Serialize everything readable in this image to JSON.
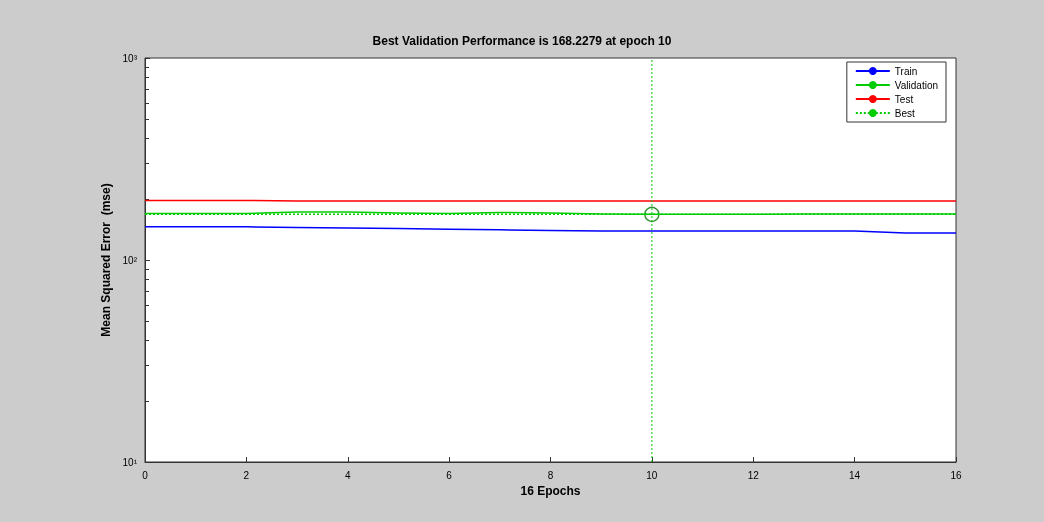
{
  "chart_data": {
    "type": "line",
    "title": "Best Validation Performance is 168.2279 at epoch 10",
    "xlabel": "16 Epochs",
    "ylabel": "Mean Squared Error  (mse)",
    "x": [
      0,
      1,
      2,
      3,
      4,
      5,
      6,
      7,
      8,
      9,
      10,
      11,
      12,
      13,
      14,
      15,
      16
    ],
    "series": [
      {
        "name": "Train",
        "color": "#0000ff",
        "values": [
          146,
          146,
          146,
          145,
          144,
          143,
          142,
          141,
          140,
          139,
          139,
          139,
          139,
          139,
          139,
          136,
          136
        ]
      },
      {
        "name": "Validation",
        "color": "#00cc00",
        "values": [
          170,
          170,
          170,
          173,
          173,
          171,
          170,
          172,
          171,
          169,
          168.2279,
          168.2279,
          168.2279,
          169,
          169,
          169,
          169
        ]
      },
      {
        "name": "Test",
        "color": "#ff0000",
        "values": [
          197,
          197,
          197,
          196,
          196,
          196,
          196,
          196,
          196,
          196,
          196,
          196,
          196,
          196,
          196,
          196,
          196
        ]
      },
      {
        "name": "Best",
        "color": "#00cc00",
        "line_style": "dotted",
        "x": [
          0,
          16
        ],
        "values": [
          168.2279,
          168.2279
        ]
      },
      {
        "type": "scatter",
        "marker": "circle",
        "color": "#007700",
        "x": [
          10
        ],
        "values": [
          168.2279
        ]
      }
    ],
    "ref_lines": [
      {
        "axis": "x",
        "value": 10,
        "color": "#00cc00",
        "line_style": "dotted"
      }
    ],
    "xlim": [
      0,
      16
    ],
    "xticks": [
      0,
      2,
      4,
      6,
      8,
      10,
      12,
      14,
      16
    ],
    "log": "y",
    "ylim": [
      10,
      1000
    ],
    "yticks": [
      {
        "value": 10,
        "label": "10¹"
      },
      {
        "value": 100,
        "label": "10²"
      },
      {
        "value": 1000,
        "label": "10³"
      }
    ],
    "grid": false,
    "legend": "top right",
    "marker": "none"
  }
}
